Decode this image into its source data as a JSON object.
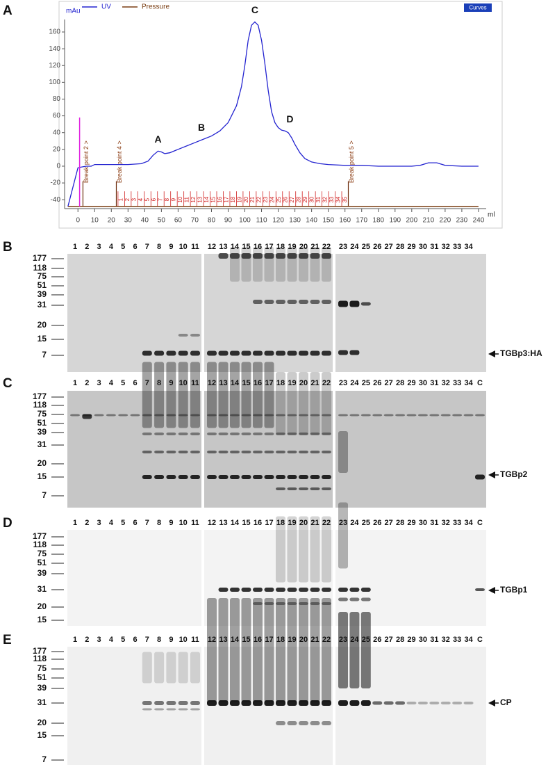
{
  "chart_data": {
    "type": "line",
    "panel_label": "A",
    "y_unit": "mAu",
    "x_unit": "ml",
    "button": "Curves",
    "xlim": [
      -8,
      244.6
    ],
    "ylim": [
      -50.6,
      191.5
    ],
    "xticks": [
      0,
      10,
      20,
      30,
      40,
      50,
      60,
      70,
      80,
      90,
      100,
      110,
      120,
      130,
      140,
      150,
      160,
      170,
      180,
      190,
      200,
      210,
      220,
      230,
      240
    ],
    "yticks": [
      -40,
      -20,
      0,
      20,
      40,
      60,
      80,
      100,
      120,
      140,
      160
    ],
    "series": [
      {
        "name": "UV",
        "color": "#2323d0",
        "x": [
          -6,
          0,
          2,
          5,
          8,
          10,
          20,
          30,
          38,
          42,
          45,
          48,
          50,
          52,
          55,
          60,
          65,
          70,
          75,
          80,
          85,
          90,
          95,
          98,
          100,
          102,
          104,
          106,
          108,
          110,
          112,
          114,
          116,
          118,
          120,
          122,
          124,
          126,
          128,
          130,
          133,
          136,
          140,
          145,
          150,
          160,
          170,
          180,
          190,
          200,
          205,
          210,
          215,
          220,
          230,
          240
        ],
        "values": [
          -48,
          -2,
          -1,
          0,
          0,
          2,
          2,
          2,
          3,
          6,
          13,
          18,
          17,
          15,
          16,
          20,
          24,
          28,
          32,
          36,
          42,
          52,
          72,
          95,
          120,
          150,
          168,
          172,
          168,
          150,
          122,
          90,
          65,
          52,
          46,
          43,
          42,
          40,
          34,
          26,
          16,
          9,
          5,
          3,
          2,
          1,
          1,
          0,
          0,
          0,
          1,
          4,
          4,
          1,
          0,
          0
        ]
      },
      {
        "name": "Pressure",
        "color": "#7a3d12",
        "x": [
          -6,
          240
        ],
        "values": [
          -48,
          -48
        ]
      },
      {
        "color": "#e020e0",
        "x": [
          1,
          1
        ],
        "values": [
          -48,
          58
        ]
      }
    ],
    "peaks": [
      {
        "label": "A",
        "x": 48,
        "y": 18
      },
      {
        "label": "B",
        "x": 74,
        "y": 32
      },
      {
        "label": "C",
        "x": 106,
        "y": 172
      },
      {
        "label": "D",
        "x": 127,
        "y": 42
      }
    ],
    "break_points": [
      {
        "label": "Break point 2 >",
        "x": 3
      },
      {
        "label": "Break point 4 >",
        "x": 23
      },
      {
        "label": "Break point 5 >",
        "x": 162
      }
    ],
    "fractions": {
      "xlim": [
        24,
        162
      ],
      "labels": [
        1,
        2,
        3,
        4,
        5,
        6,
        7,
        8,
        9,
        10,
        11,
        12,
        13,
        14,
        15,
        16,
        17,
        18,
        19,
        20,
        21,
        22,
        23,
        24,
        25,
        26,
        27,
        28,
        29,
        30,
        31,
        32,
        33,
        34,
        35
      ]
    }
  },
  "blots": [
    {
      "label": "B",
      "lanes": [
        1,
        2,
        3,
        4,
        5,
        6,
        7,
        8,
        9,
        10,
        11,
        12,
        13,
        14,
        15,
        16,
        17,
        18,
        19,
        20,
        21,
        22,
        23,
        24,
        25,
        26,
        27,
        28,
        29,
        30,
        31,
        32,
        33,
        34
      ],
      "markers": [
        177,
        118,
        75,
        51,
        39,
        31,
        20,
        15,
        7
      ],
      "target": "TGBp3:HA"
    },
    {
      "label": "C",
      "lanes": [
        1,
        2,
        3,
        4,
        5,
        6,
        7,
        8,
        9,
        10,
        11,
        12,
        13,
        14,
        15,
        16,
        17,
        18,
        19,
        20,
        21,
        22,
        23,
        24,
        25,
        26,
        27,
        28,
        29,
        30,
        31,
        32,
        33,
        34,
        "C"
      ],
      "markers": [
        177,
        118,
        75,
        51,
        39,
        31,
        20,
        15,
        7
      ],
      "target": "TGBp2"
    },
    {
      "label": "D",
      "lanes": [
        1,
        2,
        3,
        4,
        5,
        6,
        7,
        8,
        9,
        10,
        11,
        12,
        13,
        14,
        15,
        16,
        17,
        18,
        19,
        20,
        21,
        22,
        23,
        24,
        25,
        26,
        27,
        28,
        29,
        30,
        31,
        32,
        33,
        34,
        "C"
      ],
      "markers": [
        177,
        118,
        75,
        51,
        39,
        31,
        20,
        15
      ],
      "target": "TGBp1"
    },
    {
      "label": "E",
      "lanes": [
        1,
        2,
        3,
        4,
        5,
        6,
        7,
        8,
        9,
        10,
        11,
        12,
        13,
        14,
        15,
        16,
        17,
        18,
        19,
        20,
        21,
        22,
        23,
        24,
        25,
        26,
        27,
        28,
        29,
        30,
        31,
        32,
        33,
        34,
        "C"
      ],
      "markers": [
        177,
        118,
        75,
        51,
        39,
        31,
        20,
        15,
        7
      ],
      "target": "CP"
    }
  ]
}
